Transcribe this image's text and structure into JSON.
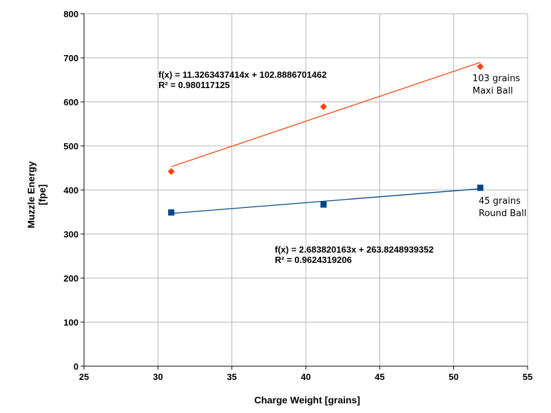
{
  "chart_data": {
    "type": "scatter",
    "xlabel": "Charge Weight [grains]",
    "ylabel": [
      "Muzzle Energy",
      "[fpe]"
    ],
    "xlim": [
      25,
      55
    ],
    "ylim": [
      0,
      800
    ],
    "xticks": [
      25,
      30,
      35,
      40,
      45,
      50,
      55
    ],
    "yticks": [
      0,
      100,
      200,
      300,
      400,
      500,
      600,
      700,
      800
    ],
    "grid": true,
    "series": [
      {
        "label_lines": [
          "103 grains",
          "Maxi Ball"
        ],
        "marker": "diamond",
        "color": "#ff420e",
        "points": [
          {
            "x": 30.9,
            "y": 442
          },
          {
            "x": 41.2,
            "y": 589
          },
          {
            "x": 51.8,
            "y": 680
          }
        ],
        "trend": {
          "slope": 11.3263437414,
          "intercept": 102.8886701462,
          "x_range": [
            30.9,
            51.8
          ],
          "equation": "f(x) = 11.3263437414x + 102.8886701462",
          "r2": "R² = 0.980117125"
        }
      },
      {
        "label_lines": [
          "45 grains",
          "Round Ball"
        ],
        "marker": "square",
        "color": "#004586",
        "points": [
          {
            "x": 30.9,
            "y": 349
          },
          {
            "x": 41.2,
            "y": 367
          },
          {
            "x": 51.8,
            "y": 405
          }
        ],
        "trend": {
          "slope": 2.683820163,
          "intercept": 263.8248939352,
          "x_range": [
            30.9,
            51.8
          ],
          "equation": "f(x) = 2.683820163x + 263.8248939352",
          "r2": "R² = 0.9624319206"
        }
      }
    ]
  }
}
